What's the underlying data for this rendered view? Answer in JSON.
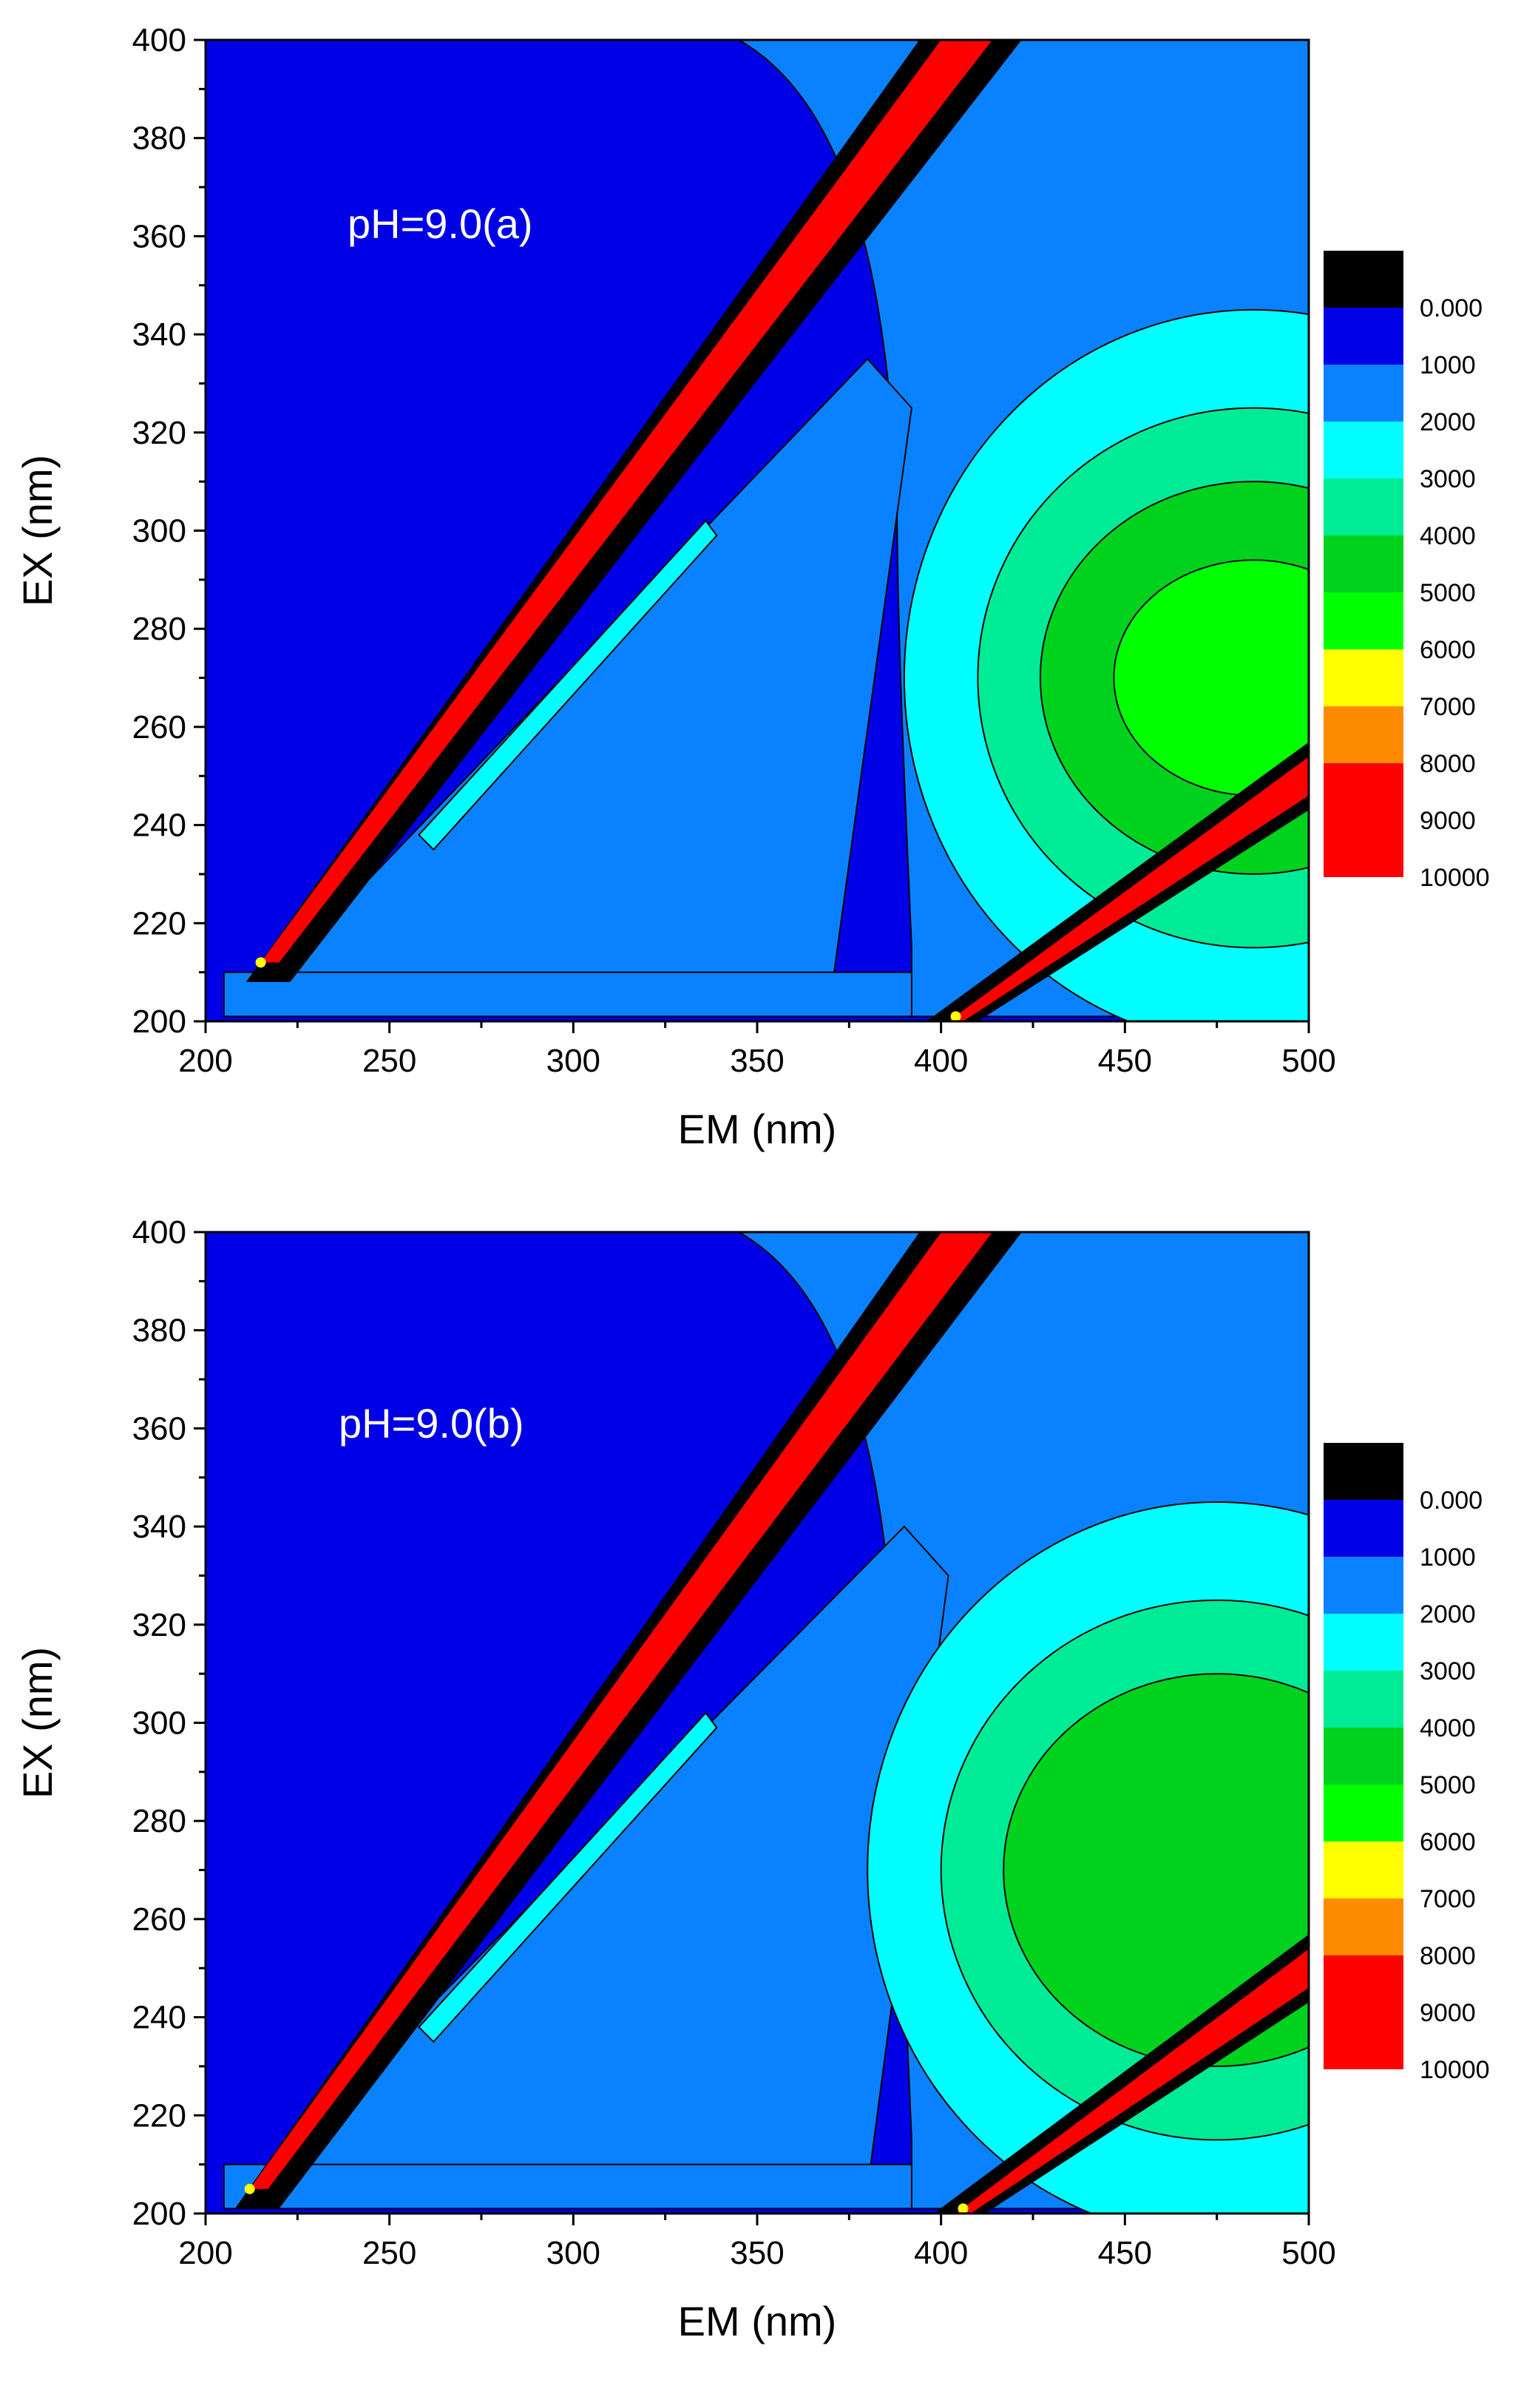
{
  "chart_data": [
    {
      "type": "heatmap",
      "subtype": "filled-contour",
      "title": "pH=9.0(a)",
      "xlabel": "EM (nm)",
      "ylabel": "EX (nm)",
      "xlim": [
        200,
        500
      ],
      "ylim": [
        200,
        400
      ],
      "xticks": [
        "200",
        "250",
        "300",
        "350",
        "400",
        "450",
        "500"
      ],
      "yticks": [
        "200",
        "220",
        "240",
        "260",
        "280",
        "300",
        "320",
        "340",
        "360",
        "380",
        "400"
      ],
      "legend_position": "right",
      "levels": [
        "0.000",
        "1000",
        "2000",
        "3000",
        "4000",
        "5000",
        "6000",
        "7000",
        "8000",
        "9000",
        "10000"
      ],
      "level_colors": [
        "#000000",
        "#0000e6",
        "#0a82ff",
        "#00ffff",
        "#00eb96",
        "#00d21e",
        "#00ff00",
        "#ffff00",
        "#ff8c00",
        "#ff0000",
        "#ff0000"
      ],
      "features": {
        "rayleigh_scatter_1st": {
          "em_start": 215,
          "ex_start": 212,
          "em_end": 410,
          "ex_end": 400
        },
        "rayleigh_scatter_2nd": {
          "em_start": 400,
          "ex_start": 200,
          "em_end": 500,
          "ex_end": 252
        },
        "fluorescence_peak": {
          "em": 470,
          "ex": 270,
          "max_level": "6000"
        },
        "raman_band": {
          "em_start": 210,
          "ex_start": 202,
          "em_end": 380,
          "ex_end": 335
        }
      }
    },
    {
      "type": "heatmap",
      "subtype": "filled-contour",
      "title": "pH=9.0(b)",
      "xlabel": "EM (nm)",
      "ylabel": "EX (nm)",
      "xlim": [
        200,
        500
      ],
      "ylim": [
        200,
        400
      ],
      "xticks": [
        "200",
        "250",
        "300",
        "350",
        "400",
        "450",
        "500"
      ],
      "yticks": [
        "200",
        "220",
        "240",
        "260",
        "280",
        "300",
        "320",
        "340",
        "360",
        "380",
        "400"
      ],
      "legend_position": "right",
      "levels": [
        "0.000",
        "1000",
        "2000",
        "3000",
        "4000",
        "5000",
        "6000",
        "7000",
        "8000",
        "9000",
        "10000"
      ],
      "level_colors": [
        "#000000",
        "#0000e6",
        "#0a82ff",
        "#00ffff",
        "#00eb96",
        "#00d21e",
        "#00ff00",
        "#ffff00",
        "#ff8c00",
        "#ff0000",
        "#ff0000"
      ],
      "features": {
        "rayleigh_scatter_1st": {
          "em_start": 212,
          "ex_start": 205,
          "em_end": 410,
          "ex_end": 400
        },
        "rayleigh_scatter_2nd": {
          "em_start": 402,
          "ex_start": 200,
          "em_end": 500,
          "ex_end": 252
        },
        "fluorescence_peak": {
          "em": 460,
          "ex": 270,
          "max_level": "5000"
        },
        "raman_band": {
          "em_start": 208,
          "ex_start": 202,
          "em_end": 390,
          "ex_end": 340
        }
      }
    }
  ]
}
